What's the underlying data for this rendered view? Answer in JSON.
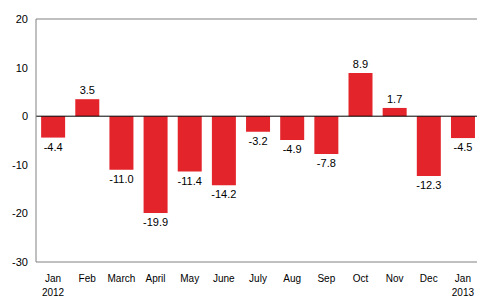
{
  "chart_data": {
    "type": "bar",
    "categories": [
      "Jan 2012",
      "Feb",
      "March",
      "April",
      "May",
      "June",
      "July",
      "Aug",
      "Sep",
      "Oct",
      "Nov",
      "Dec",
      "Jan 2013"
    ],
    "values": [
      -4.4,
      3.5,
      -11.0,
      -19.9,
      -11.4,
      -14.2,
      -3.2,
      -4.9,
      -7.8,
      8.9,
      1.7,
      -12.3,
      -4.5
    ],
    "value_labels": [
      "-4.4",
      "3.5",
      "-11.0",
      "-19.9",
      "-11.4",
      "-14.2",
      "-3.2",
      "-4.9",
      "-7.8",
      "8.9",
      "1.7",
      "-12.3",
      "-4.5"
    ],
    "color": "#e3242b",
    "ylim": [
      -30,
      20
    ],
    "yticks": [
      -30,
      -20,
      -10,
      0,
      10,
      20
    ],
    "grid": false,
    "data_labels": true
  }
}
